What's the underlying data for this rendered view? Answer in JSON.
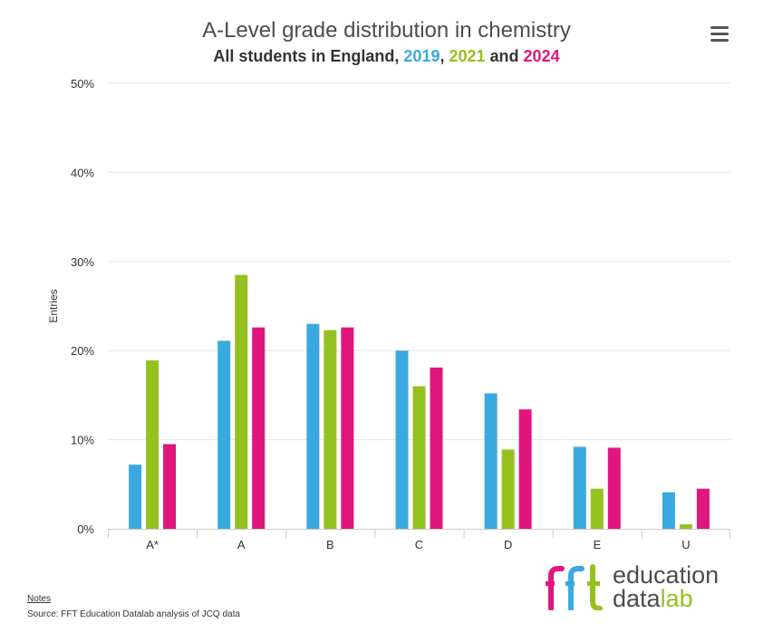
{
  "title": "A-Level grade distribution in chemistry",
  "subtitle": {
    "prefix": "All students in England, ",
    "sep1": ", ",
    "sep2": " and "
  },
  "colors": {
    "s2019": "#3aa9df",
    "s2021": "#95c11f",
    "s2024": "#e0157e",
    "grid": "#e6e6e6",
    "axis": "#cccccc"
  },
  "menu_icon": "hamburger-menu-icon",
  "chart_data": {
    "type": "bar",
    "title": "A-Level grade distribution in chemistry",
    "subtitle": "All students in England, 2019, 2021 and 2024",
    "xlabel": "",
    "ylabel": "Entries",
    "ylim": [
      0,
      50
    ],
    "yticks": [
      "0%",
      "10%",
      "20%",
      "30%",
      "40%",
      "50%"
    ],
    "ytick_values": [
      0,
      10,
      20,
      30,
      40,
      50
    ],
    "grid": true,
    "legend": "in subtitle",
    "categories": [
      "A*",
      "A",
      "B",
      "C",
      "D",
      "E",
      "U"
    ],
    "series": [
      {
        "name": "2019",
        "values": [
          7.2,
          21.1,
          23.0,
          20.0,
          15.2,
          9.2,
          4.1
        ]
      },
      {
        "name": "2021",
        "values": [
          18.9,
          28.5,
          22.3,
          16.0,
          8.9,
          4.5,
          0.5
        ]
      },
      {
        "name": "2024",
        "values": [
          9.5,
          22.6,
          22.6,
          18.1,
          13.4,
          9.1,
          4.5
        ]
      }
    ]
  },
  "footer": {
    "notes_label": "Notes",
    "source": "Source: FFT Education Datalab analysis of JCQ data"
  },
  "logo": {
    "mark": "fft",
    "line1": "education",
    "line2_a": "data",
    "line2_b": "lab"
  }
}
